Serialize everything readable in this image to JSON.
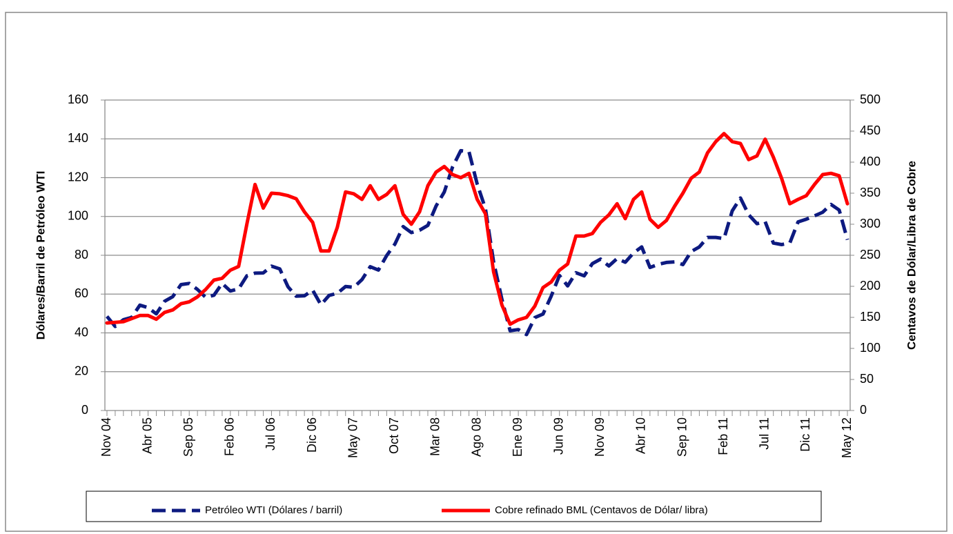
{
  "chart_data": {
    "type": "line",
    "categories": [
      "Nov 04",
      null,
      null,
      null,
      null,
      "Abr 05",
      null,
      null,
      null,
      null,
      "Sep 05",
      null,
      null,
      null,
      null,
      "Feb 06",
      null,
      null,
      null,
      null,
      "Jul 06",
      null,
      null,
      null,
      null,
      "Dic 06",
      null,
      null,
      null,
      null,
      "May 07",
      null,
      null,
      null,
      null,
      "Oct 07",
      null,
      null,
      null,
      null,
      "Mar 08",
      null,
      null,
      null,
      null,
      "Ago 08",
      null,
      null,
      null,
      null,
      "Ene 09",
      null,
      null,
      null,
      null,
      "Jun 09",
      null,
      null,
      null,
      null,
      "Nov 09",
      null,
      null,
      null,
      null,
      "Abr 10",
      null,
      null,
      null,
      null,
      "Sep 10",
      null,
      null,
      null,
      null,
      "Feb 11",
      null,
      null,
      null,
      null,
      "Jul 11",
      null,
      null,
      null,
      null,
      "Dic 11",
      null,
      null,
      null,
      null,
      "May 12"
    ],
    "ylabel": "Dólares/Barril  de Petróleo WTI",
    "y2label": "Centavos de Dólar/Libra de Cobre",
    "ylim": [
      0,
      160
    ],
    "yticks": [
      0,
      20,
      40,
      60,
      80,
      100,
      120,
      140,
      160
    ],
    "y2lim": [
      0,
      500
    ],
    "y2ticks": [
      0,
      50,
      100,
      150,
      200,
      250,
      300,
      350,
      400,
      450,
      500
    ],
    "grid": true,
    "legend": "bottom",
    "series": [
      {
        "name": "Petróleo WTI (Dólares / barril)",
        "color": "#0d1a80",
        "dashed": true,
        "values": [
          48.5,
          43.3,
          46.8,
          48.0,
          54.3,
          53.0,
          49.8,
          56.3,
          58.7,
          64.9,
          65.5,
          62.4,
          58.3,
          59.4,
          65.5,
          61.6,
          62.7,
          69.4,
          70.8,
          70.9,
          74.4,
          73.0,
          63.8,
          58.9,
          59.1,
          62.0,
          54.5,
          59.3,
          60.4,
          63.9,
          63.5,
          67.5,
          74.1,
          72.4,
          79.9,
          85.8,
          94.8,
          91.7,
          92.9,
          95.4,
          105.4,
          112.6,
          125.4,
          133.9,
          133.4,
          116.7,
          104.1,
          76.6,
          57.3,
          41.1,
          41.7,
          39.1,
          47.9,
          49.7,
          59.0,
          69.6,
          64.2,
          71.0,
          69.4,
          75.7,
          78.0,
          74.5,
          78.3,
          76.4,
          81.2,
          84.3,
          73.7,
          75.3,
          76.3,
          76.6,
          75.2,
          81.9,
          84.3,
          89.2,
          89.2,
          88.6,
          102.9,
          109.5,
          100.9,
          96.3,
          97.3,
          86.3,
          85.5,
          86.3,
          97.2,
          98.6,
          100.3,
          102.2,
          106.2,
          103.3,
          88
        ]
      },
      {
        "name": "Cobre refinado BML (Centavos de Dólar/ libra)",
        "color": "#ff0000",
        "dashed": false,
        "axis": "y2",
        "values": [
          141,
          142,
          143,
          148,
          153,
          153,
          147,
          158,
          162,
          172,
          175,
          183,
          195,
          210,
          213,
          226,
          232,
          300,
          364,
          326,
          350,
          349,
          346,
          341,
          320,
          303,
          257,
          257,
          295,
          352,
          349,
          340,
          362,
          340,
          348,
          362,
          316,
          300,
          320,
          362,
          384,
          393,
          380,
          375,
          382,
          340,
          317,
          223,
          170,
          139,
          146,
          150,
          168,
          198,
          207,
          226,
          236,
          281,
          281,
          285,
          303,
          315,
          333,
          309,
          340,
          352,
          308,
          295,
          306,
          329,
          350,
          374,
          384,
          415,
          433,
          446,
          433,
          430,
          404,
          410,
          437,
          408,
          374,
          333,
          340,
          346,
          364,
          380,
          382,
          378,
          333
        ]
      }
    ]
  }
}
